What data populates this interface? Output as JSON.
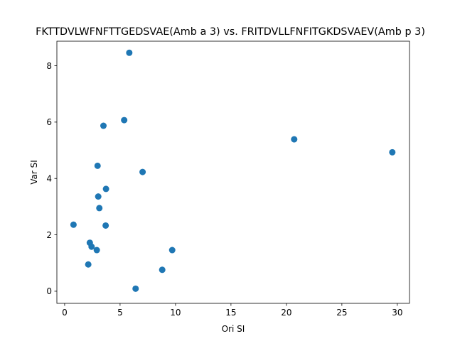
{
  "chart_data": {
    "type": "scatter",
    "title": "FKTTDVLWFNFTTGEDSVAE(Amb a 3) vs. FRITDVLLFNFITGKDSVAEV(Amb p 3)",
    "xlabel": "Ori SI",
    "ylabel": "Var SI",
    "xlim": [
      -0.7,
      31.1
    ],
    "ylim": [
      -0.43,
      8.87
    ],
    "xticks": [
      0,
      5,
      10,
      15,
      20,
      25,
      30
    ],
    "yticks": [
      0,
      2,
      4,
      6,
      8
    ],
    "grid": false,
    "marker_color": "#1f77b4",
    "points": [
      {
        "x": 5.83,
        "y": 8.46
      },
      {
        "x": 5.37,
        "y": 6.07
      },
      {
        "x": 3.5,
        "y": 5.87
      },
      {
        "x": 2.97,
        "y": 4.45
      },
      {
        "x": 7.03,
        "y": 4.23
      },
      {
        "x": 3.73,
        "y": 3.63
      },
      {
        "x": 3.03,
        "y": 3.36
      },
      {
        "x": 3.13,
        "y": 2.95
      },
      {
        "x": 0.8,
        "y": 2.36
      },
      {
        "x": 3.7,
        "y": 2.33
      },
      {
        "x": 2.27,
        "y": 1.72
      },
      {
        "x": 2.43,
        "y": 1.58
      },
      {
        "x": 2.9,
        "y": 1.46
      },
      {
        "x": 9.7,
        "y": 1.46
      },
      {
        "x": 2.13,
        "y": 0.95
      },
      {
        "x": 8.8,
        "y": 0.76
      },
      {
        "x": 6.4,
        "y": 0.09
      },
      {
        "x": 20.7,
        "y": 5.39
      },
      {
        "x": 29.55,
        "y": 4.93
      }
    ]
  }
}
